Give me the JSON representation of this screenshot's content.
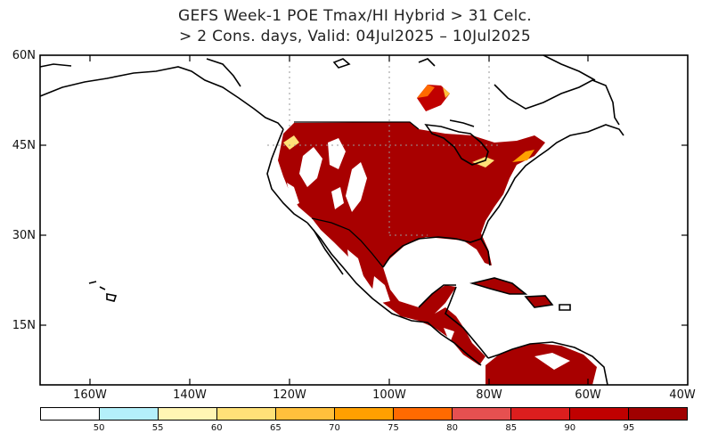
{
  "title": {
    "line1": "GEFS Week-1 POE Tmax/HI Hybrid > 31 Celc.",
    "line2": "> 2 Cons. days, Valid: 04Jul2025 – 10Jul2025"
  },
  "map": {
    "lat_labels": [
      "60N",
      "45N",
      "30N",
      "15N"
    ],
    "lon_labels": [
      "160W",
      "140W",
      "120W",
      "100W",
      "80W",
      "60W",
      "40W"
    ],
    "lon_range": [
      -170,
      -40
    ],
    "lat_range": [
      5,
      60
    ],
    "gridlines": "dotted grey at 100W, 80W, 120W (north) and 30N/45N"
  },
  "colorbar": {
    "ticks": [
      "50",
      "55",
      "60",
      "65",
      "70",
      "75",
      "80",
      "85",
      "90",
      "95"
    ],
    "colors": [
      "#ffffff",
      "#b4f0fa",
      "#fff5b4",
      "#ffe178",
      "#ffc03c",
      "#ffa000",
      "#ff6a00",
      "#e65050",
      "#dc1e1e",
      "#c00000",
      "#a00000"
    ]
  }
}
